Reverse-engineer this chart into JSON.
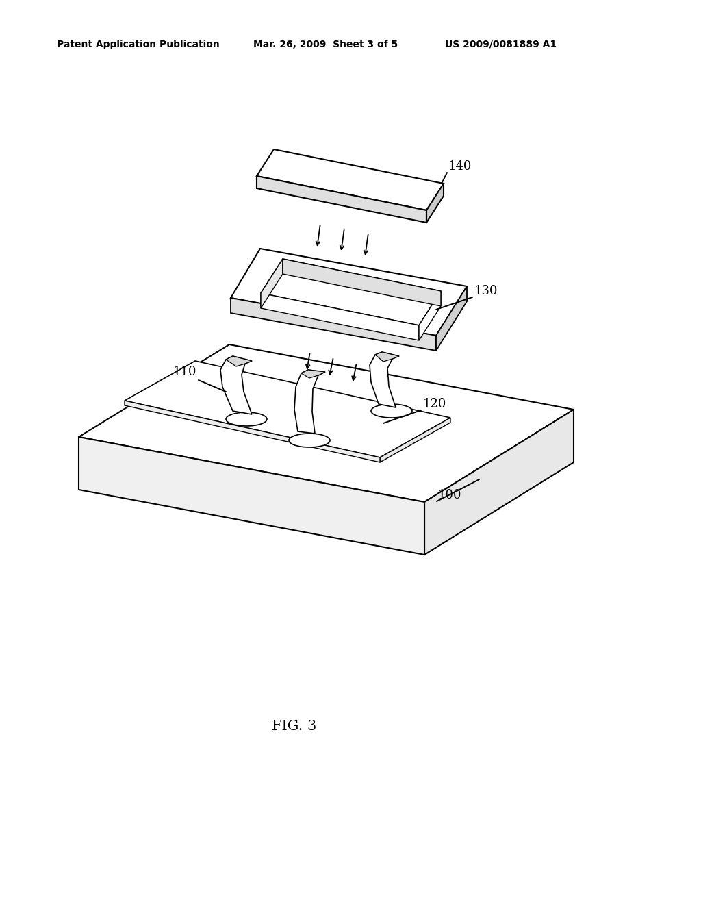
{
  "bg_color": "#ffffff",
  "line_color": "#000000",
  "header_left": "Patent Application Publication",
  "header_mid": "Mar. 26, 2009  Sheet 3 of 5",
  "header_right": "US 2009/0081889 A1",
  "fig_label": "FIG. 3"
}
